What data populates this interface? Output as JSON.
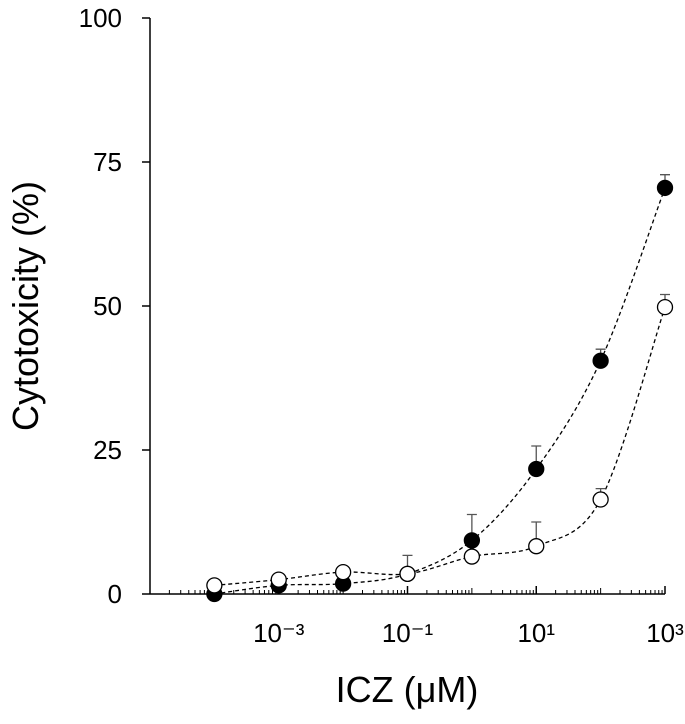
{
  "chart_data": {
    "type": "scatter",
    "x_label": "ICZ (μM)",
    "y_label": "Cytotoxicity (%)",
    "x": [
      0.0001,
      0.001,
      0.01,
      0.1,
      1,
      10,
      100,
      1000
    ],
    "x_log": true,
    "series": [
      {
        "color": "#000000",
        "filled": true,
        "values": [
          0,
          1.5,
          1.8,
          3.5,
          9.3,
          21.7,
          40.5,
          70.5
        ],
        "errors": [
          null,
          null,
          null,
          null,
          4.5,
          4,
          2,
          2.3
        ]
      },
      {
        "color": "#000000",
        "filled": false,
        "values": [
          1.5,
          2.5,
          3.8,
          3.5,
          6.5,
          8.3,
          16.4,
          49.8
        ],
        "errors": [
          null,
          1,
          null,
          3.2,
          null,
          4.2,
          1.9,
          2.2
        ]
      }
    ],
    "xlim": [
      1e-05,
      1000
    ],
    "xticks": [
      {
        "value": 0.001,
        "label": "10⁻³"
      },
      {
        "value": 0.1,
        "label": "10⁻¹"
      },
      {
        "value": 10,
        "label": "10¹"
      },
      {
        "value": 1000,
        "label": "10³"
      }
    ],
    "ylim": [
      0,
      100
    ],
    "yticks": [
      0,
      25,
      50,
      75,
      100
    ]
  }
}
